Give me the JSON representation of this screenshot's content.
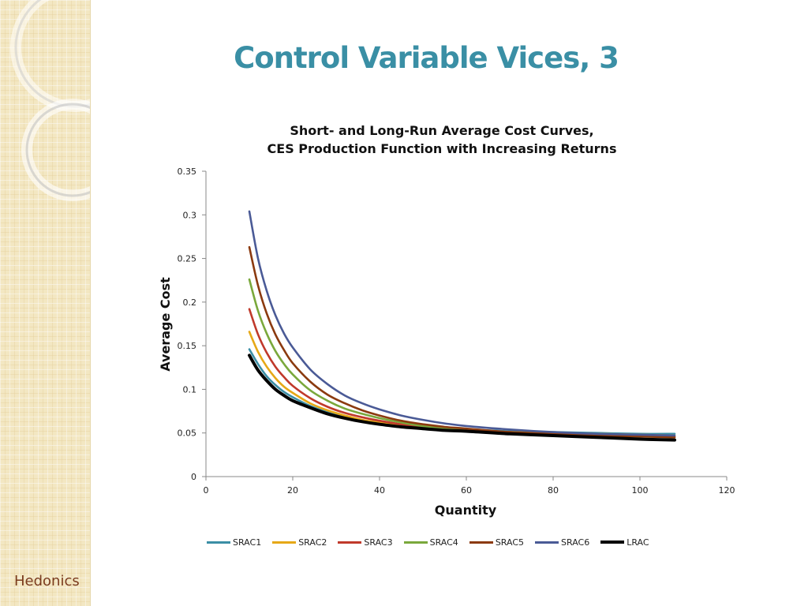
{
  "slide": {
    "title": "Control Variable Vices, 3",
    "footer": "Hedonics"
  },
  "colors": {
    "title": "#3a8fa5",
    "footer": "#7a3b1d",
    "sidebar": "#f3e7c2"
  },
  "chart_data": {
    "type": "line",
    "title": "Short- and Long-Run Average Cost Curves,",
    "subtitle": "CES Production Function with Increasing Returns",
    "xlabel": "Quantity",
    "ylabel": "Average Cost",
    "xlim": [
      0,
      120
    ],
    "ylim": [
      0,
      0.35
    ],
    "xticks": [
      "0",
      "20",
      "40",
      "60",
      "80",
      "100",
      "120"
    ],
    "yticks": [
      "0",
      "0.05",
      "0.1",
      "0.15",
      "0.2",
      "0.25",
      "0.3",
      "0.35"
    ],
    "grid": false,
    "legend": "bottom",
    "x": [
      10,
      12,
      14,
      16,
      18,
      20,
      24,
      28,
      32,
      36,
      40,
      45,
      50,
      55,
      60,
      70,
      80,
      90,
      100,
      108
    ],
    "series": [
      {
        "name": "SRAC1",
        "color": "#3b8ea5",
        "values": [
          0.146,
          0.129,
          0.115,
          0.105,
          0.097,
          0.091,
          0.081,
          0.074,
          0.069,
          0.064,
          0.061,
          0.058,
          0.056,
          0.055,
          0.054,
          0.052,
          0.051,
          0.05,
          0.049,
          0.049
        ]
      },
      {
        "name": "SRAC2",
        "color": "#e6a817",
        "values": [
          0.166,
          0.143,
          0.126,
          0.113,
          0.103,
          0.096,
          0.084,
          0.076,
          0.07,
          0.065,
          0.062,
          0.058,
          0.056,
          0.054,
          0.053,
          0.051,
          0.05,
          0.049,
          0.048,
          0.047
        ]
      },
      {
        "name": "SRAC3",
        "color": "#c0392b",
        "values": [
          0.192,
          0.163,
          0.142,
          0.126,
          0.114,
          0.104,
          0.09,
          0.08,
          0.073,
          0.068,
          0.064,
          0.06,
          0.057,
          0.055,
          0.054,
          0.051,
          0.049,
          0.048,
          0.047,
          0.046
        ]
      },
      {
        "name": "SRAC4",
        "color": "#7aa83c",
        "values": [
          0.226,
          0.19,
          0.164,
          0.144,
          0.129,
          0.117,
          0.099,
          0.087,
          0.078,
          0.072,
          0.067,
          0.062,
          0.058,
          0.056,
          0.054,
          0.051,
          0.049,
          0.047,
          0.046,
          0.045
        ]
      },
      {
        "name": "SRAC5",
        "color": "#8b3a0f",
        "values": [
          0.263,
          0.219,
          0.187,
          0.163,
          0.145,
          0.13,
          0.109,
          0.094,
          0.084,
          0.076,
          0.07,
          0.064,
          0.06,
          0.057,
          0.055,
          0.051,
          0.049,
          0.047,
          0.046,
          0.045
        ]
      },
      {
        "name": "SRAC6",
        "color": "#4a5a96",
        "values": [
          0.304,
          0.25,
          0.213,
          0.185,
          0.164,
          0.148,
          0.123,
          0.106,
          0.093,
          0.084,
          0.077,
          0.07,
          0.065,
          0.061,
          0.058,
          0.054,
          0.051,
          0.049,
          0.048,
          0.047
        ]
      },
      {
        "name": "LRAC",
        "color": "#000000",
        "values": [
          0.139,
          0.122,
          0.11,
          0.1,
          0.093,
          0.087,
          0.079,
          0.072,
          0.067,
          0.063,
          0.06,
          0.057,
          0.055,
          0.053,
          0.052,
          0.049,
          0.047,
          0.045,
          0.043,
          0.042
        ]
      }
    ]
  }
}
